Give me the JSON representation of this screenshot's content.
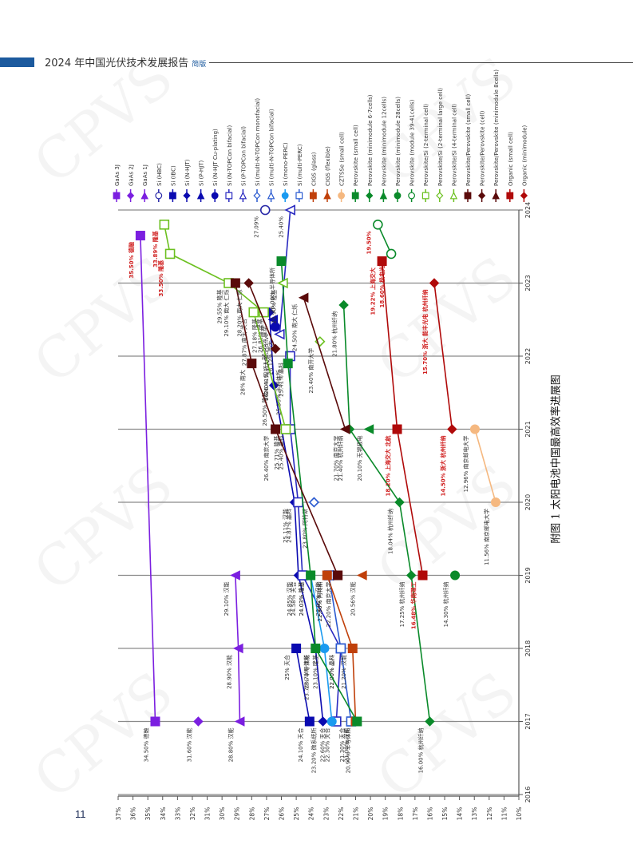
{
  "header": {
    "title": "2024 年中国光伏技术发展报告",
    "subtitle": "简版"
  },
  "page_number": "11",
  "caption": "附图 1  太阳电池中国最高效率进展图",
  "watermark": "CPVS",
  "colors": {
    "header_bar": "#1c5a9e",
    "axis": "#555555",
    "gridline": "#888888"
  },
  "chart_data": {
    "type": "scatter",
    "orientation": "rotated-90",
    "title": "附图 1 太阳电池中国最高效率进展图",
    "xlabel": "Efficiency",
    "ylabel": "Year",
    "x_ticks": [
      "37%",
      "36%",
      "35%",
      "34%",
      "33%",
      "32%",
      "31%",
      "30%",
      "29%",
      "28%",
      "27%",
      "26%",
      "25%",
      "24%",
      "23%",
      "22%",
      "21%",
      "20%",
      "19%",
      "18%",
      "17%",
      "16%",
      "15%",
      "14%",
      "13%",
      "12%",
      "11%",
      "10%"
    ],
    "y_ticks": [
      "2016",
      "2017",
      "2018",
      "2019",
      "2020",
      "2021",
      "2022",
      "2023",
      "2024"
    ],
    "xlim": [
      37,
      10
    ],
    "ylim": [
      2016,
      2024
    ],
    "grid": "horizontal year lines",
    "legend_position": "top (rotated)",
    "legend": [
      {
        "name": "GaAs 3J",
        "color": "#7b1fe0",
        "marker": "square"
      },
      {
        "name": "GaAs 2J",
        "color": "#7b1fe0",
        "marker": "diamond"
      },
      {
        "name": "GaAs 1J",
        "color": "#7b1fe0",
        "marker": "triangle"
      },
      {
        "name": "Si (HBC)",
        "color": "#2a2aa8",
        "marker": "circle-open"
      },
      {
        "name": "Si (IBC)",
        "color": "#0a0ab0",
        "marker": "square"
      },
      {
        "name": "Si (N-HJT)",
        "color": "#0a0ab0",
        "marker": "diamond"
      },
      {
        "name": "Si (P-HJT)",
        "color": "#0a0ab0",
        "marker": "triangle"
      },
      {
        "name": "Si (N-HJT Cu-plating)",
        "color": "#0a0ab0",
        "marker": "circle"
      },
      {
        "name": "Si (N-TOPCon bifacial)",
        "color": "#2a2ac0",
        "marker": "square-open"
      },
      {
        "name": "Si (P-TOPCon bifacial)",
        "color": "#2a2ac0",
        "marker": "triangle-open"
      },
      {
        "name": "Si (multi-N-TOPCon monofacial)",
        "color": "#2a5ad0",
        "marker": "diamond-open"
      },
      {
        "name": "Si (multi-N-TOPCon bifacial)",
        "color": "#2a5ad0",
        "marker": "triangle-open"
      },
      {
        "name": "Si (mono-PERC)",
        "color": "#1a9af0",
        "marker": "circle"
      },
      {
        "name": "Si (multi-PERC)",
        "color": "#2a5ad0",
        "marker": "square-open"
      },
      {
        "name": "CIGS (glass)",
        "color": "#c0400a",
        "marker": "square"
      },
      {
        "name": "CIGS (flexible)",
        "color": "#c0400a",
        "marker": "triangle"
      },
      {
        "name": "CZTSSe (small cell)",
        "color": "#f5b880",
        "marker": "circle"
      },
      {
        "name": "Perovskite (small cell)",
        "color": "#0a8a2a",
        "marker": "square"
      },
      {
        "name": "Perovskite (minimodule 6-7cells)",
        "color": "#0a8a2a",
        "marker": "diamond"
      },
      {
        "name": "Perovskite (minimodule 12cells)",
        "color": "#0a8a2a",
        "marker": "triangle"
      },
      {
        "name": "Perovskite (minimodule 28cells)",
        "color": "#0a8a2a",
        "marker": "circle"
      },
      {
        "name": "Perovskite (module 39-41cells)",
        "color": "#0a8a2a",
        "marker": "circle-open"
      },
      {
        "name": "Perovskite/Si (2-terminal cell)",
        "color": "#6cc020",
        "marker": "square-open"
      },
      {
        "name": "Perovskite/Si (2-terminal large cell)",
        "color": "#6cc020",
        "marker": "diamond-open"
      },
      {
        "name": "Perovskite/Si (4-terminal cell)",
        "color": "#6cc020",
        "marker": "triangle-open"
      },
      {
        "name": "Perovskite/Perovskite (small cell)",
        "color": "#5a0a0a",
        "marker": "square"
      },
      {
        "name": "Perovskite/Perovskite (cell)",
        "color": "#5a0a0a",
        "marker": "diamond"
      },
      {
        "name": "Perovskite/Perovskite (minimodule 8cells)",
        "color": "#5a0a0a",
        "marker": "triangle"
      },
      {
        "name": "Organic (small cell)",
        "color": "#b00a0a",
        "marker": "square"
      },
      {
        "name": "Organic (minimodule)",
        "color": "#b00a0a",
        "marker": "diamond"
      }
    ],
    "series": [
      {
        "name": "GaAs 3J",
        "points": [
          [
            2017,
            34.5,
            "34.50% 德融"
          ],
          [
            2023.65,
            35.5,
            "35.50% 德融"
          ]
        ]
      },
      {
        "name": "GaAs 2J",
        "points": [
          [
            2017,
            31.6,
            "31.60% 汉能"
          ]
        ]
      },
      {
        "name": "GaAs 1J",
        "points": [
          [
            2017,
            28.8,
            "28.80% 汉能"
          ],
          [
            2018,
            28.9,
            "28.90% 汉能"
          ],
          [
            2019,
            29.1,
            "29.10% 汉能"
          ]
        ]
      },
      {
        "name": "Si (HBC)",
        "points": [
          [
            2024,
            27.09,
            "27.09%"
          ]
        ]
      },
      {
        "name": "Si (IBC)",
        "points": [
          [
            2017,
            24.1,
            "24.10% 天合"
          ],
          [
            2018,
            25.0,
            "25% 天合"
          ]
        ]
      },
      {
        "name": "Si (N-HJT)",
        "points": [
          [
            2017,
            23.2,
            "23.20% 微系统所"
          ],
          [
            2018,
            23.7,
            "23.70% 汉能"
          ],
          [
            2019,
            24.85,
            "24.85% 汉能"
          ],
          [
            2020,
            25.11,
            "25.11% 汉能"
          ],
          [
            2021.6,
            26.5,
            "26.50% 隆基"
          ],
          [
            2022.6,
            26.81,
            "26.81% 隆基"
          ]
        ]
      },
      {
        "name": "Si (P-HJT)",
        "points": [
          [
            2022.5,
            26.56,
            "26.56% 隆基"
          ]
        ]
      },
      {
        "name": "Si (N-HJT Cu-plating)",
        "points": [
          [
            2022.4,
            26.41,
            "26.41% 迈为 Sundrive"
          ]
        ]
      },
      {
        "name": "Si (N-TOPCon bifacial)",
        "points": [
          [
            2017,
            22.3,
            "22.30% 天合"
          ],
          [
            2018,
            22.0,
            "22.00% 晶科"
          ],
          [
            2019,
            24.58,
            "24.58% 天合"
          ],
          [
            2020,
            24.87,
            "24.87% 晶科"
          ],
          [
            2021,
            25.4,
            "25.40% 晶科"
          ],
          [
            2022,
            25.41,
            "25.41% 晶科"
          ]
        ]
      },
      {
        "name": "Si (P-TOPCon bifacial)",
        "points": [
          [
            2022.3,
            26.12,
            "26.12% 南大"
          ],
          [
            2024,
            25.4,
            "25.40%"
          ]
        ]
      },
      {
        "name": "Si (multi-N-TOPCon monofacial)",
        "points": [
          [
            2020,
            23.8,
            "23.80% 阿特斯"
          ]
        ]
      },
      {
        "name": "Si (multi-N-TOPCon bifacial)",
        "points": [
          [
            2019,
            22.8,
            "22.80% 阿特斯"
          ]
        ]
      },
      {
        "name": "Si (mono-PERC)",
        "points": [
          [
            2017,
            22.6,
            "22.60% 天合"
          ],
          [
            2018,
            23.1,
            "23.10% 隆基"
          ],
          [
            2019,
            24.03,
            "24.03% 隆基"
          ]
        ]
      },
      {
        "name": "Si (multi-PERC)",
        "points": [
          [
            2017,
            21.3,
            "21.30% 天合"
          ],
          [
            2018,
            22.0,
            "22.00% 晶科"
          ],
          [
            2019,
            22.8,
            "22.80% 阿特斯"
          ]
        ]
      },
      {
        "name": "CIGS (glass)",
        "points": [
          [
            2017,
            21.0,
            "21.00% 汉能"
          ],
          [
            2018,
            21.2,
            "21.20% 汉能"
          ],
          [
            2019,
            22.92,
            "22.92% 汉能"
          ]
        ]
      },
      {
        "name": "CIGS (flexible)",
        "points": [
          [
            2019,
            20.56,
            "20.56% 汉能"
          ]
        ]
      },
      {
        "name": "CZTSSe (small cell)",
        "points": [
          [
            2020,
            11.56,
            "11.56% 南京邮电大学"
          ],
          [
            2021,
            12.96,
            "12.96% 南京邮电大学"
          ]
        ]
      },
      {
        "name": "Perovskite (small cell)",
        "points": [
          [
            2017,
            20.9,
            "20.90% 半导体所"
          ],
          [
            2018,
            23.7,
            "23.70% 半导体所"
          ],
          [
            2019,
            24.03,
            "24.03% 隆基"
          ],
          [
            2021.9,
            25.56,
            "25.56% 半导体所"
          ],
          [
            2023.3,
            26.0,
            "26.00% 半导体所"
          ]
        ]
      },
      {
        "name": "Perovskite (minimodule 6-7cells)",
        "points": [
          [
            2017,
            16.0,
            "16.00% 杭州纤纳"
          ],
          [
            2019,
            17.25,
            "17.25% 杭州纤纳"
          ],
          [
            2020,
            18.04,
            "18.04% 杭州纤纳"
          ],
          [
            2021,
            21.4,
            "21.40% 杭州纤纳"
          ],
          [
            2022.7,
            21.8,
            "21.80% 杭州纤纳"
          ]
        ]
      },
      {
        "name": "Perovskite (minimodule 12cells)",
        "points": [
          [
            2021,
            20.1,
            "20.10% 无锡极电"
          ]
        ]
      },
      {
        "name": "Perovskite (minimodule 28cells)",
        "points": [
          [
            2019,
            14.3,
            "14.30% 杭州纤纳"
          ]
        ]
      },
      {
        "name": "Perovskite (module 39-41cells)",
        "points": [
          [
            2023.4,
            18.6,
            "18.60% 极电光能"
          ],
          [
            2023.8,
            19.5,
            "19.50%"
          ]
        ]
      },
      {
        "name": "Perovskite/Si (2-terminal cell)",
        "points": [
          [
            2021,
            25.71,
            "25.71% 隆基"
          ],
          [
            2022.6,
            27.87,
            "27.87% 南大 天合"
          ],
          [
            2022.6,
            27.18,
            "27.18% 隆基"
          ],
          [
            2023,
            29.55,
            "29.55% 隆基"
          ],
          [
            2023.4,
            33.5,
            "33.50% 隆基"
          ],
          [
            2023.8,
            33.89,
            "33.89% 隆基"
          ]
        ]
      },
      {
        "name": "Perovskite/Si (2-terminal large cell)",
        "points": [
          [
            2022.2,
            23.4,
            "23.40% 南开大学"
          ]
        ]
      },
      {
        "name": "Perovskite/Si (4-terminal cell)",
        "points": [
          [
            2023,
            25.9,
            "25.90% 隆基"
          ]
        ]
      },
      {
        "name": "Perovskite/Perovskite (small cell)",
        "points": [
          [
            2019,
            22.2,
            "22.20% 南京大学"
          ],
          [
            2021,
            26.4,
            "26.40% 南京大学"
          ],
          [
            2021.9,
            28.0,
            "28% 南大"
          ],
          [
            2023,
            29.1,
            "29.10% 南大 仁烁"
          ]
        ]
      },
      {
        "name": "Perovskite/Perovskite (cell)",
        "points": [
          [
            2022.1,
            26.4,
            "26.40% 四川大学"
          ],
          [
            2023,
            28.2,
            "28.20% 南大 仁烁"
          ]
        ]
      },
      {
        "name": "Perovskite/Perovskite (minimodule 8cells)",
        "points": [
          [
            2021,
            21.7,
            "21.70% 南京大学"
          ],
          [
            2022.8,
            24.5,
            "24.50% 南大 仁烁"
          ]
        ]
      },
      {
        "name": "Organic (small cell)",
        "points": [
          [
            2019,
            16.48,
            "16.48% 华南理工"
          ],
          [
            2021,
            18.2,
            "18.20% 上海交大 北航"
          ],
          [
            2023.3,
            19.22,
            "19.22% 上海交大"
          ]
        ]
      },
      {
        "name": "Organic (minimodule)",
        "points": [
          [
            2021,
            14.5,
            "14.50% 浙大 杭州纤纳"
          ],
          [
            2023,
            15.7,
            "15.70% 浙大 能丰光电 杭州纤纳"
          ]
        ]
      }
    ]
  }
}
